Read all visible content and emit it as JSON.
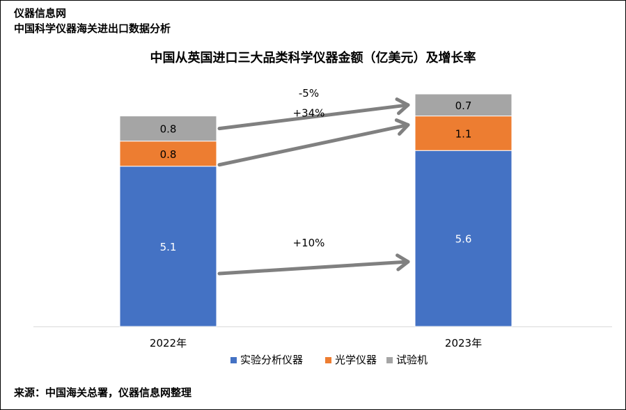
{
  "header": {
    "site_name": "仪器信息网",
    "subtitle": "中国科学仪器海关进出口数据分析"
  },
  "source_note": "来源：中国海关总署，仪器信息网整理",
  "colors": {
    "analytical": "#4472C4",
    "optical": "#ED7D31",
    "testing": "#A5A5A5",
    "arrow": "#808080"
  },
  "chart_data": {
    "type": "bar",
    "stacked": true,
    "title": "中国从英国进口三大品类科学仪器金额（亿美元）及增长率",
    "xlabel": "",
    "ylabel": "",
    "categories": [
      "2022年",
      "2023年"
    ],
    "series": [
      {
        "name": "实验分析仪器",
        "values": [
          5.1,
          5.6
        ],
        "color": "#4472C4"
      },
      {
        "name": "光学仪器",
        "values": [
          0.8,
          1.1
        ],
        "color": "#ED7D31"
      },
      {
        "name": "试验机",
        "values": [
          0.8,
          0.7
        ],
        "color": "#A5A5A5"
      }
    ],
    "growth_rates": [
      {
        "series": "试验机",
        "label": "-5%"
      },
      {
        "series": "光学仪器",
        "label": "+34%"
      },
      {
        "series": "实验分析仪器",
        "label": "+10%"
      }
    ],
    "legend_position": "bottom",
    "grid": false,
    "data_labels": true
  }
}
